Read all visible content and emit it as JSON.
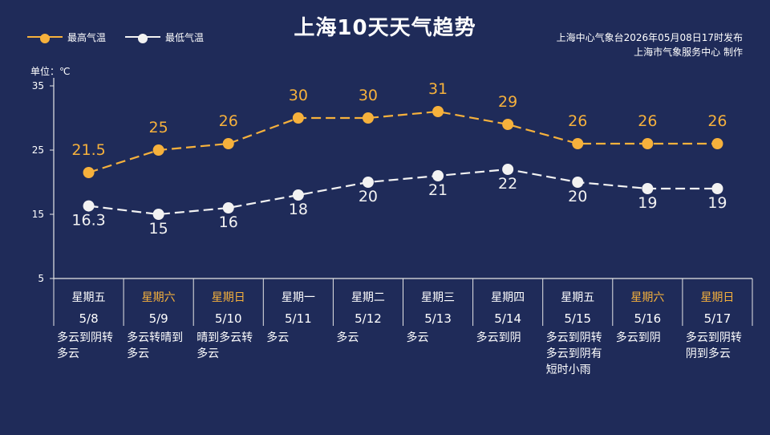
{
  "title": "上海10天天气趋势",
  "legend": {
    "high_label": "最高气温",
    "low_label": "最低气温"
  },
  "meta": {
    "issued": "上海中心气象台2026年05月08日17时发布",
    "producer": "上海市气象服务中心  制作"
  },
  "unit_label": "单位：℃",
  "colors": {
    "background": "#1f2b59",
    "high": "#f6b13c",
    "low": "#f2f2f2",
    "weekend": "#f6b13c"
  },
  "chart_data": {
    "type": "line",
    "ylim": [
      5,
      35
    ],
    "yticks": [
      35,
      25,
      15,
      5
    ],
    "categories": [
      "5/8",
      "5/9",
      "5/10",
      "5/11",
      "5/12",
      "5/13",
      "5/14",
      "5/15",
      "5/16",
      "5/17"
    ],
    "weekdays": [
      "星期五",
      "星期六",
      "星期日",
      "星期一",
      "星期二",
      "星期三",
      "星期四",
      "星期五",
      "星期六",
      "星期日"
    ],
    "weekend_flags": [
      false,
      true,
      true,
      false,
      false,
      false,
      false,
      false,
      true,
      true
    ],
    "weather": [
      "多云到阴转\n多云",
      "多云转晴到\n多云",
      "晴到多云转\n多云",
      "多云",
      "多云",
      "多云",
      "多云到阴",
      "多云到阴转\n多云到阴有\n短时小雨",
      "多云到阴",
      "多云到阴转\n阴到多云"
    ],
    "series": [
      {
        "name": "最高气温",
        "values": [
          21.5,
          25,
          26,
          30,
          30,
          31,
          29,
          26,
          26,
          26
        ],
        "labels": [
          "21.5",
          "25",
          "26",
          "30",
          "30",
          "31",
          "29",
          "26",
          "26",
          "26"
        ]
      },
      {
        "name": "最低气温",
        "values": [
          16.3,
          15,
          16,
          18,
          20,
          21,
          22,
          20,
          19,
          19
        ],
        "labels": [
          "16.3",
          "15",
          "16",
          "18",
          "20",
          "21",
          "22",
          "20",
          "19",
          "19"
        ]
      }
    ],
    "grid": false,
    "legend_position": "top-left"
  }
}
